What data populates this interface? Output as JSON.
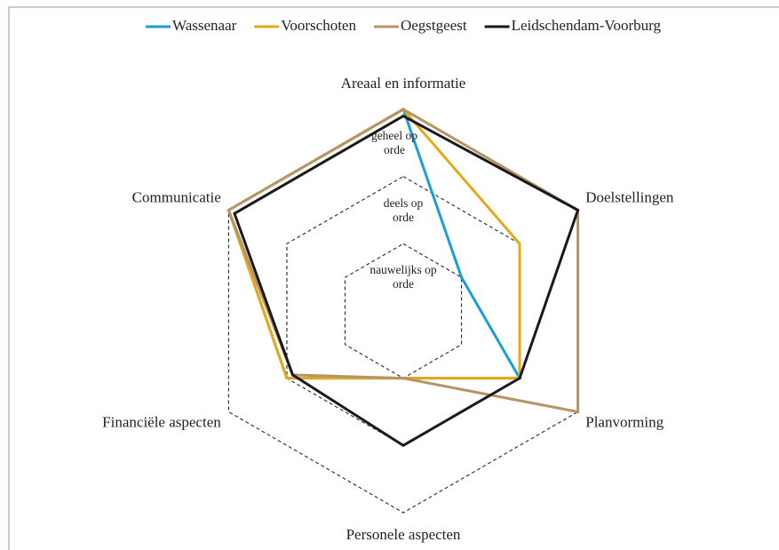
{
  "chart_data": {
    "type": "radar",
    "categories": [
      "Areaal en informatie",
      "Doelstellingen",
      "Planvorming",
      "Personele aspecten",
      "Financiële aspecten",
      "Communicatie"
    ],
    "series": [
      {
        "name": "Wassenaar",
        "color": "#1a9ed9",
        "values": [
          3,
          1,
          2,
          1,
          2,
          3
        ]
      },
      {
        "name": "Voorschoten",
        "color": "#e6a817",
        "values": [
          3,
          2,
          2,
          1,
          2,
          3
        ]
      },
      {
        "name": "Oegstgeest",
        "color": "#b89363",
        "values": [
          3,
          3,
          3,
          1,
          1.9,
          3
        ]
      },
      {
        "name": "Leidschendam-Voorburg",
        "color": "#1a1a1a",
        "values": [
          2.9,
          3,
          2,
          2,
          1.9,
          2.9
        ]
      }
    ],
    "rlim": [
      0,
      3
    ],
    "rticks": [
      {
        "value": 1,
        "label": "nauwelijks op orde"
      },
      {
        "value": 2,
        "label": "deels op orde"
      },
      {
        "value": 3,
        "label": "geheel op orde"
      }
    ],
    "grid": true,
    "legend": "top"
  }
}
